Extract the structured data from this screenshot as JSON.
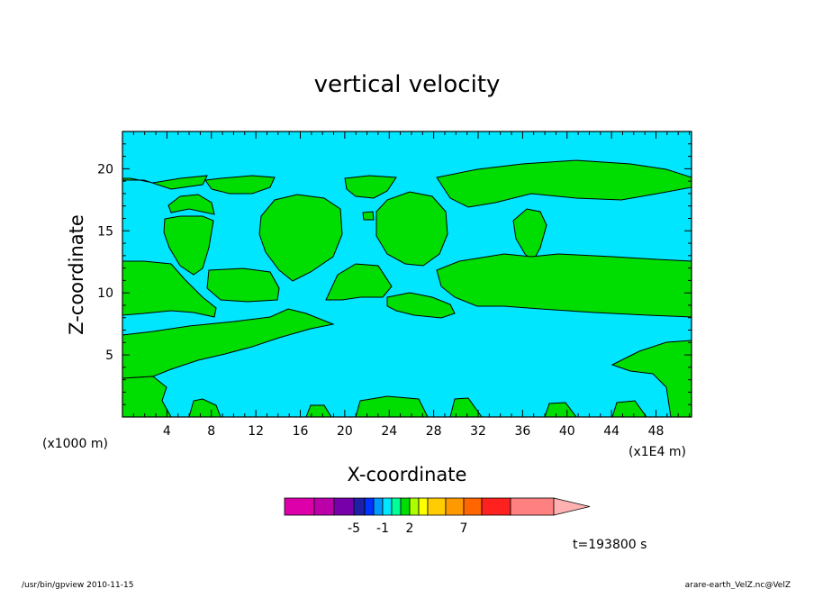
{
  "chart_data": {
    "type": "heatmap",
    "title": "vertical velocity",
    "xlabel": "X-coordinate",
    "ylabel": "Z-coordinate",
    "x_unit_label": "(x1000 m)",
    "x_scale_label": "(x1E4 m)",
    "xlim": [
      0,
      51.2
    ],
    "ylim": [
      0,
      23
    ],
    "x_ticks": [
      4,
      8,
      12,
      16,
      20,
      24,
      28,
      32,
      36,
      40,
      44,
      48
    ],
    "y_ticks": [
      5,
      10,
      15,
      20
    ],
    "colorbar": {
      "colors": [
        "#dd00aa",
        "#bb00aa",
        "#7700aa",
        "#1f1fa8",
        "#0033ff",
        "#0099ff",
        "#00e6ff",
        "#00ff99",
        "#00dd00",
        "#aaff00",
        "#ffff00",
        "#ffcc00",
        "#ff9900",
        "#ff6600",
        "#ff2020",
        "#ff8080",
        "#ffb0b0"
      ],
      "tick_labels": [
        "-5",
        "-1",
        "2",
        "7"
      ]
    },
    "field_colors": {
      "background": "#00e6ff",
      "positive": "#00dd00"
    },
    "time_label": "t=193800 s"
  },
  "footer": {
    "left": "/usr/bin/gpview   2010-11-15",
    "right": "arare-earth_VelZ.nc@VelZ"
  }
}
